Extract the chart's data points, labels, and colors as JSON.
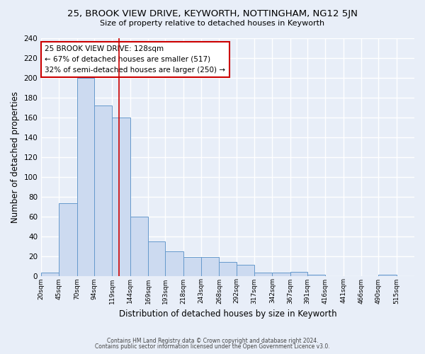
{
  "title": "25, BROOK VIEW DRIVE, KEYWORTH, NOTTINGHAM, NG12 5JN",
  "subtitle": "Size of property relative to detached houses in Keyworth",
  "xlabel": "Distribution of detached houses by size in Keyworth",
  "ylabel": "Number of detached properties",
  "bar_labels": [
    "20sqm",
    "45sqm",
    "70sqm",
    "94sqm",
    "119sqm",
    "144sqm",
    "169sqm",
    "193sqm",
    "218sqm",
    "243sqm",
    "268sqm",
    "292sqm",
    "317sqm",
    "342sqm",
    "367sqm",
    "391sqm",
    "416sqm",
    "441sqm",
    "466sqm",
    "490sqm",
    "515sqm"
  ],
  "bar_heights": [
    3,
    73,
    200,
    172,
    160,
    60,
    35,
    25,
    19,
    19,
    14,
    11,
    3,
    3,
    4,
    1,
    0,
    0,
    0,
    1,
    0
  ],
  "bar_color": "#ccdaf0",
  "bar_edge_color": "#6699cc",
  "vline_x": 128,
  "annotation_line1": "25 BROOK VIEW DRIVE: 128sqm",
  "annotation_line2": "← 67% of detached houses are smaller (517)",
  "annotation_line3": "32% of semi-detached houses are larger (250) →",
  "annotation_box_color": "white",
  "annotation_box_edge_color": "#cc0000",
  "vline_color": "#cc0000",
  "ylim": [
    0,
    240
  ],
  "yticks": [
    0,
    20,
    40,
    60,
    80,
    100,
    120,
    140,
    160,
    180,
    200,
    220,
    240
  ],
  "footnote1": "Contains HM Land Registry data © Crown copyright and database right 2024.",
  "footnote2": "Contains public sector information licensed under the Open Government Licence v3.0.",
  "bg_color": "#e8eef8",
  "plot_bg_color": "#e8eef8",
  "grid_color": "#ffffff"
}
